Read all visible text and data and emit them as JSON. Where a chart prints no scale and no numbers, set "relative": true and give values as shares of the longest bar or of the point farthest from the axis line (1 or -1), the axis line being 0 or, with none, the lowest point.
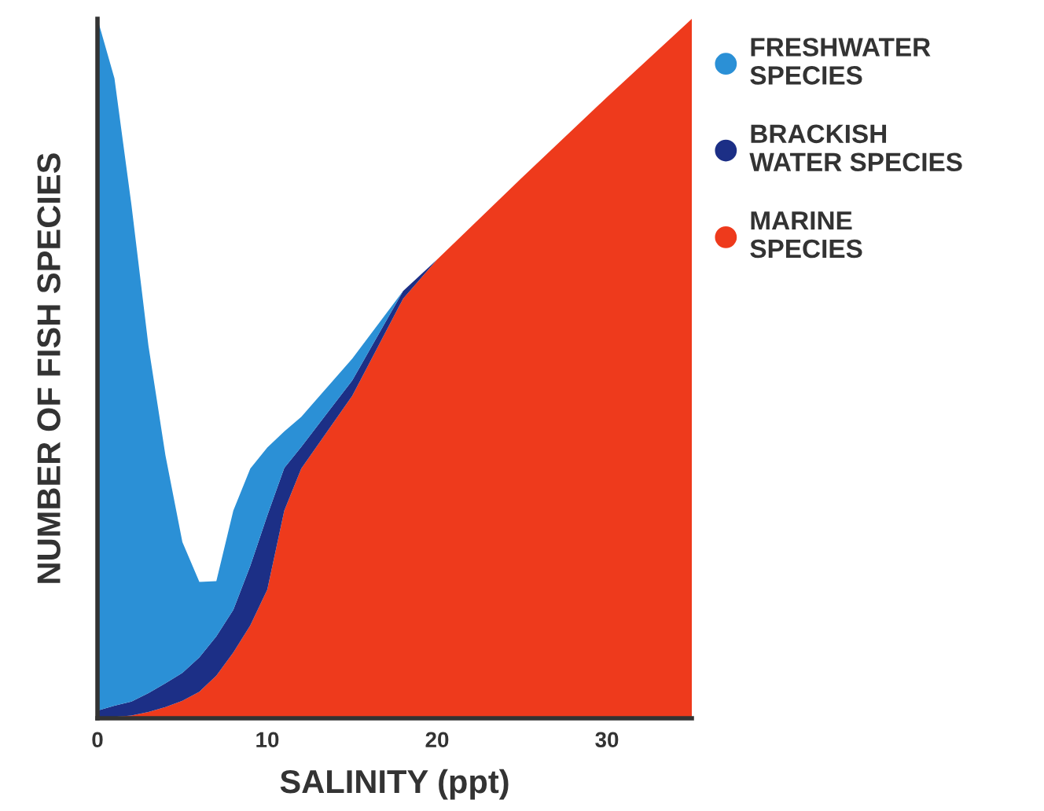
{
  "chart_data": {
    "type": "area",
    "stacked": true,
    "relative": true,
    "xlabel": "SALINITY (ppt)",
    "ylabel": "NUMBER OF FISH SPECIES",
    "x": [
      0,
      1,
      2,
      3,
      4,
      5,
      6,
      7,
      8,
      9,
      10,
      11,
      12,
      15,
      18,
      20,
      25,
      30,
      35
    ],
    "xlim": [
      0,
      35
    ],
    "xticks": [
      0,
      10,
      20,
      30
    ],
    "tick_labels": "x",
    "grid": false,
    "legend": "top right",
    "series": [
      {
        "name": "MARINE SPECIES",
        "color": "#ee3a1c",
        "values": [
          0,
          0.002,
          0.004,
          0.009,
          0.016,
          0.025,
          0.038,
          0.061,
          0.094,
          0.133,
          0.184,
          0.297,
          0.357,
          0.461,
          0.6,
          0.656,
          0.773,
          0.888,
          1
        ]
      },
      {
        "name": "BRACKISH WATER SPECIES",
        "color": "#1c2f86",
        "values": [
          0.011,
          0.016,
          0.02,
          0.027,
          0.034,
          0.04,
          0.049,
          0.056,
          0.061,
          0.085,
          0.106,
          0.061,
          0.031,
          0.022,
          0.011,
          0,
          null,
          null,
          null
        ]
      },
      {
        "name": "FRESHWATER SPECIES",
        "color": "#2b90d6",
        "values": [
          0.989,
          0.897,
          0.71,
          0.497,
          0.326,
          0.187,
          0.108,
          0.079,
          0.142,
          0.139,
          0.097,
          0.052,
          0.043,
          0.031,
          0,
          null,
          null,
          null,
          null
        ]
      }
    ]
  }
}
